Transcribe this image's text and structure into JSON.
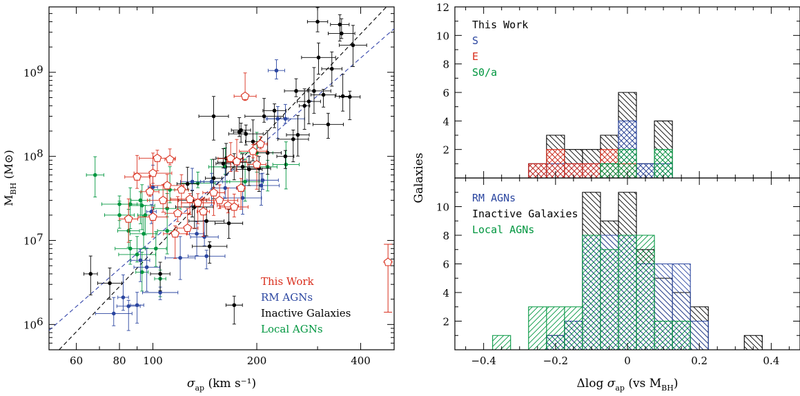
{
  "chart_data": [
    {
      "type": "scatter",
      "xscale": "log",
      "yscale": "log",
      "xlim": [
        50,
        500
      ],
      "ylim": [
        500000,
        6000000000
      ],
      "xlabel_main": "σ",
      "xlabel_sub": "ap",
      "xlabel_unit": "(km s⁻¹)",
      "ylabel_main": "M",
      "ylabel_sub": "BH",
      "ylabel_unit": "(M⊙)",
      "x_ticks": [
        60,
        80,
        100,
        200,
        400
      ],
      "y_ticks": [
        {
          "value": 1000000,
          "base": "10",
          "exp": "6"
        },
        {
          "value": 10000000,
          "base": "10",
          "exp": "7"
        },
        {
          "value": 100000000,
          "base": "10",
          "exp": "8"
        },
        {
          "value": 1000000000,
          "base": "10",
          "exp": "9"
        }
      ],
      "legend_position": "bottom-right",
      "legend": [
        {
          "label": "This Work",
          "color": "#d92e1c"
        },
        {
          "label": "RM AGNs",
          "color": "#2b46a0"
        },
        {
          "label": "Inactive Galaxies",
          "color": "#000000"
        },
        {
          "label": "Local AGNs",
          "color": "#00963f"
        }
      ],
      "fit_lines": [
        {
          "style": "dashed",
          "color": "#000000",
          "points": [
            [
              53.5,
              500000
            ],
            [
              475,
              6000000000
            ]
          ]
        },
        {
          "style": "dashed",
          "color": "#3344aa",
          "points": [
            [
              50,
              850000
            ],
            [
              500,
              3300000000
            ]
          ]
        }
      ],
      "series": [
        {
          "name": "This Work",
          "marker": "open-pentagon",
          "color": "#d92e1c",
          "points": [
            [
              103,
              95000000
            ],
            [
              112,
              92000000
            ],
            [
              168,
              94000000
            ],
            [
              175,
              87000000
            ],
            [
              185,
              520000000
            ],
            [
              195,
              115000000
            ],
            [
              205,
              140000000
            ],
            [
              200,
              80000000
            ],
            [
              90,
              57000000
            ],
            [
              100,
              63000000
            ],
            [
              110,
              45000000
            ],
            [
              121,
              40000000
            ],
            [
              128,
              31000000
            ],
            [
              135,
              28000000
            ],
            [
              150,
              37000000
            ],
            [
              156,
              30000000
            ],
            [
              165,
              26000000
            ],
            [
              172,
              25000000
            ],
            [
              98,
              38000000
            ],
            [
              107,
              30000000
            ],
            [
              118,
              21000000
            ],
            [
              100,
              19000000
            ],
            [
              126,
              14000000
            ],
            [
              140,
              22000000
            ],
            [
              85,
              18000000
            ],
            [
              116,
              12000000
            ],
            [
              180,
              42000000
            ]
          ]
        },
        {
          "name": "RM AGNs",
          "marker": "filled-circle",
          "color": "#2b46a0",
          "points": [
            [
              77,
              1350000
            ],
            [
              82,
              2100000
            ],
            [
              90,
              1700000
            ],
            [
              85,
              1650000
            ],
            [
              105,
              2400000
            ],
            [
              92,
              5800000
            ],
            [
              96,
              4800000
            ],
            [
              120,
              6200000
            ],
            [
              143,
              6500000
            ],
            [
              134,
              12000000
            ],
            [
              141,
              11000000
            ],
            [
              99,
              22000000
            ],
            [
              100,
              43000000
            ],
            [
              130,
              50000000
            ],
            [
              148,
              50000000
            ],
            [
              162,
              42000000
            ],
            [
              206,
              45000000
            ],
            [
              230,
              280000000
            ],
            [
              242,
              280000000
            ],
            [
              228,
              1050000000
            ],
            [
              208,
              52000000
            ],
            [
              182,
              32000000
            ]
          ]
        },
        {
          "name": "Inactive Galaxies",
          "marker": "filled-circle",
          "color": "#000000",
          "points": [
            [
              66,
              4000000
            ],
            [
              75,
              3100000
            ],
            [
              105,
              4000000
            ],
            [
              146,
              8500000
            ],
            [
              166,
              16000000
            ],
            [
              172,
              1700000
            ],
            [
              143,
              17000000
            ],
            [
              132,
              25000000
            ],
            [
              126,
              47000000
            ],
            [
              150,
              55000000
            ],
            [
              160,
              82000000
            ],
            [
              172,
              85000000
            ],
            [
              182,
              75000000
            ],
            [
              190,
              70000000
            ],
            [
              195,
              150000000
            ],
            [
              210,
              300000000
            ],
            [
              178,
              195000000
            ],
            [
              186,
              185000000
            ],
            [
              180,
              205000000
            ],
            [
              215,
              110000000
            ],
            [
              225,
              350000000
            ],
            [
              242,
              100000000
            ],
            [
              255,
              160000000
            ],
            [
              263,
              180000000
            ],
            [
              260,
              600000000
            ],
            [
              275,
              400000000
            ],
            [
              283,
              450000000
            ],
            [
              293,
              600000000
            ],
            [
              300,
              4000000000
            ],
            [
              302,
              1500000000
            ],
            [
              312,
              540000000
            ],
            [
              322,
              240000000
            ],
            [
              330,
              1100000000
            ],
            [
              348,
              3700000000
            ],
            [
              352,
              2900000000
            ],
            [
              355,
              520000000
            ],
            [
              372,
              510000000
            ],
            [
              380,
              2100000000
            ],
            [
              163,
              95000000
            ],
            [
              130,
              30000000
            ],
            [
              150,
              300000000
            ],
            [
              203,
              72000000
            ]
          ]
        },
        {
          "name": "Local AGNs",
          "marker": "filled-circle",
          "color": "#00963f",
          "points": [
            [
              68,
              60000000
            ],
            [
              80,
              27000000
            ],
            [
              86,
              27000000
            ],
            [
              93,
              26000000
            ],
            [
              80,
              20000000
            ],
            [
              95,
              20000000
            ],
            [
              92,
              30000000
            ],
            [
              86,
              8000000
            ],
            [
              90,
              6800000
            ],
            [
              85,
              13000000
            ],
            [
              94,
              12000000
            ],
            [
              102,
              8000000
            ],
            [
              110,
              13000000
            ],
            [
              110,
              24000000
            ],
            [
              112,
              40000000
            ],
            [
              105,
              3500000
            ],
            [
              93,
              4200000
            ],
            [
              135,
              48000000
            ],
            [
              148,
              50000000
            ],
            [
              162,
              75000000
            ],
            [
              185,
              50000000
            ],
            [
              200,
              110000000
            ],
            [
              215,
              75000000
            ],
            [
              243,
              80000000
            ]
          ]
        }
      ],
      "example_error_bar": {
        "x": 480,
        "y": 5500000,
        "ylow": 1400000,
        "yhigh": 9000000,
        "xlow": 465,
        "xhigh": 495
      }
    },
    {
      "type": "histogram",
      "panel": "top",
      "ylabel": "Galaxies",
      "xlim": [
        -0.48,
        0.48
      ],
      "ylim": [
        0,
        12
      ],
      "y_ticks": [
        2,
        4,
        6,
        8,
        10,
        12
      ],
      "legend_position": "top-left",
      "legend": [
        {
          "label": "This Work",
          "color": "#000000"
        },
        {
          "label": "S",
          "color": "#2b46a0"
        },
        {
          "label": "E",
          "color": "#d92e1c"
        },
        {
          "label": "S0/a",
          "color": "#00963f"
        }
      ],
      "bin_edges": [
        -0.275,
        -0.225,
        -0.175,
        -0.125,
        -0.075,
        -0.025,
        0.025,
        0.075,
        0.125
      ],
      "series": [
        {
          "name": "This Work",
          "color": "#000000",
          "counts": [
            1,
            3,
            2,
            2,
            3,
            6,
            1,
            4
          ],
          "hatch": "down"
        },
        {
          "name": "S",
          "color": "#2b46a0",
          "counts": [
            1,
            1,
            1,
            1,
            1,
            4,
            1,
            1
          ],
          "hatch": "cross"
        },
        {
          "name": "E",
          "color": "#d92e1c",
          "counts": [
            1,
            2,
            1,
            1,
            2,
            1,
            0,
            0
          ],
          "hatch": "cross"
        },
        {
          "name": "S0/a",
          "color": "#00963f",
          "counts": [
            0,
            0,
            0,
            0,
            1,
            2,
            0,
            2
          ],
          "hatch": "cross"
        }
      ]
    },
    {
      "type": "histogram",
      "panel": "bottom",
      "xlabel_main": "Δlog σ",
      "xlabel_sub": "ap",
      "xlabel_rest": " (vs M",
      "xlabel_sub2": "BH",
      "xlabel_end": ")",
      "xlim": [
        -0.48,
        0.48
      ],
      "ylim": [
        0,
        12
      ],
      "x_ticks": [
        -0.4,
        -0.2,
        0,
        0.2,
        0.4
      ],
      "x_tick_labels": [
        "−0.4",
        "−0.2",
        "0",
        "0.2",
        "0.4"
      ],
      "y_ticks": [
        2,
        4,
        6,
        8,
        10
      ],
      "legend_position": "top-left",
      "legend": [
        {
          "label": "RM AGNs",
          "color": "#2b46a0"
        },
        {
          "label": "Inactive Galaxies",
          "color": "#000000"
        },
        {
          "label": "Local AGNs",
          "color": "#00963f"
        }
      ],
      "bin_edges": [
        -0.375,
        -0.325,
        -0.275,
        -0.225,
        -0.175,
        -0.125,
        -0.075,
        -0.025,
        0.025,
        0.075,
        0.125,
        0.175,
        0.225,
        0.275,
        0.325,
        0.375
      ],
      "series": [
        {
          "name": "Inactive Galaxies",
          "color": "#000000",
          "counts": [
            0,
            0,
            0,
            1,
            2,
            11,
            9,
            11,
            7,
            5,
            4,
            3,
            0,
            0,
            1
          ],
          "hatch": "down"
        },
        {
          "name": "RM AGNs",
          "color": "#2b46a0",
          "counts": [
            0,
            0,
            0,
            1,
            2,
            8,
            8,
            8,
            6,
            6,
            6,
            2,
            0,
            0,
            0
          ],
          "hatch": "down"
        },
        {
          "name": "Local AGNs",
          "color": "#00963f",
          "counts": [
            1,
            0,
            3,
            3,
            3,
            8,
            7,
            8,
            8,
            2,
            2,
            0,
            0,
            0,
            0
          ],
          "hatch": "up"
        }
      ]
    }
  ]
}
